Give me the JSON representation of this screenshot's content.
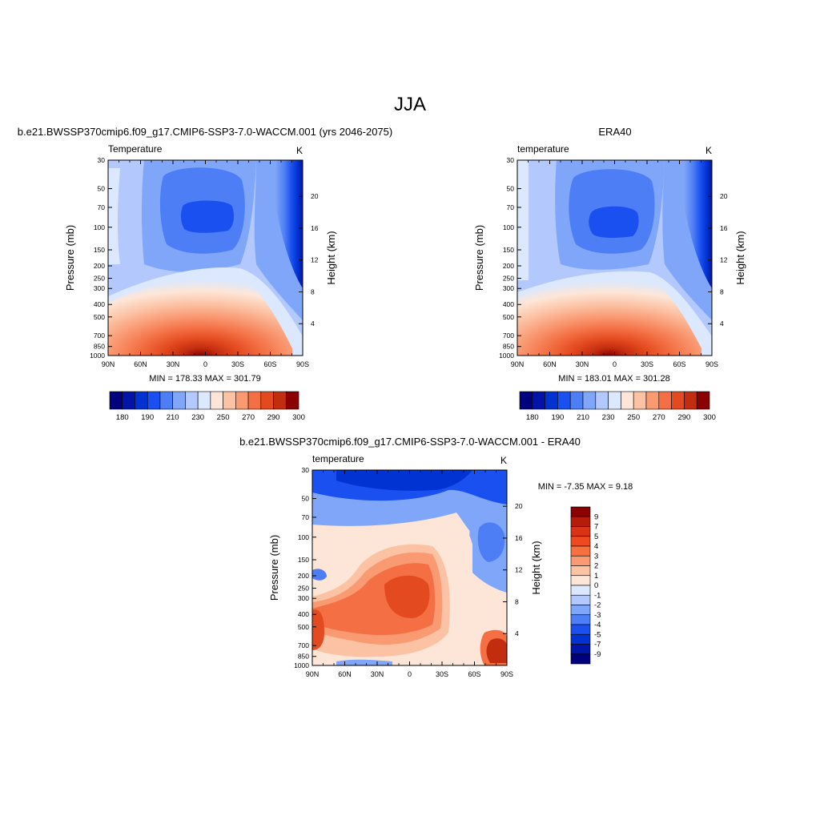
{
  "page": {
    "title": "JJA"
  },
  "chart_data": [
    {
      "type": "heatmap",
      "id": "model",
      "title": "b.e21.BWSSP370cmip6.f09_g17.CMIP6-SSP3-7.0-WACCM.001 (yrs 2046-2075)",
      "left_label": "Temperature",
      "right_label": "K",
      "xlabel": "",
      "ylabel": "Pressure (mb)",
      "ylabel_right": "Height (km)",
      "x_ticks": [
        "90N",
        "60N",
        "30N",
        "0",
        "30S",
        "60S",
        "90S"
      ],
      "x_tick_values": [
        90,
        60,
        30,
        0,
        -30,
        -60,
        -90
      ],
      "xlim": [
        90,
        -90
      ],
      "y_ticks": [
        "30",
        "50",
        "70",
        "100",
        "150",
        "200",
        "250",
        "300",
        "400",
        "500",
        "700",
        "850",
        "1000"
      ],
      "y_tick_values": [
        30,
        50,
        70,
        100,
        150,
        200,
        250,
        300,
        400,
        500,
        700,
        850,
        1000
      ],
      "ylim": [
        1000,
        30
      ],
      "y_scale": "log",
      "height_ticks": [
        "4",
        "8",
        "12",
        "16",
        "20"
      ],
      "height_tick_values": [
        4,
        8,
        12,
        16,
        20
      ],
      "stats": "MIN = 178.33  MAX = 301.79",
      "colorbar": {
        "orientation": "horizontal",
        "labels": [
          "180",
          "190",
          "210",
          "230",
          "250",
          "270",
          "290",
          "300"
        ],
        "colors": [
          "#00007f",
          "#0015a8",
          "#0033d1",
          "#1a4ff0",
          "#4d7ef5",
          "#80a6fa",
          "#b3c8fc",
          "#dbe8fe",
          "#fde6d7",
          "#fcc2a4",
          "#f99a73",
          "#f46f44",
          "#e44a1f",
          "#c22d0f",
          "#8b0000"
        ]
      }
    },
    {
      "type": "heatmap",
      "id": "obs",
      "title": "ERA40",
      "left_label": "temperature",
      "right_label": "K",
      "xlabel": "",
      "ylabel": "Pressure (mb)",
      "ylabel_right": "Height (km)",
      "x_ticks": [
        "90N",
        "60N",
        "30N",
        "0",
        "30S",
        "60S",
        "90S"
      ],
      "x_tick_values": [
        90,
        60,
        30,
        0,
        -30,
        -60,
        -90
      ],
      "xlim": [
        90,
        -90
      ],
      "y_ticks": [
        "30",
        "50",
        "70",
        "100",
        "150",
        "200",
        "250",
        "300",
        "400",
        "500",
        "700",
        "850",
        "1000"
      ],
      "y_tick_values": [
        30,
        50,
        70,
        100,
        150,
        200,
        250,
        300,
        400,
        500,
        700,
        850,
        1000
      ],
      "ylim": [
        1000,
        30
      ],
      "y_scale": "log",
      "height_ticks": [
        "4",
        "8",
        "12",
        "16",
        "20"
      ],
      "height_tick_values": [
        4,
        8,
        12,
        16,
        20
      ],
      "stats": "MIN = 183.01  MAX = 301.28",
      "colorbar": {
        "orientation": "horizontal",
        "labels": [
          "180",
          "190",
          "210",
          "230",
          "250",
          "270",
          "290",
          "300"
        ],
        "colors": [
          "#00007f",
          "#0015a8",
          "#0033d1",
          "#1a4ff0",
          "#4d7ef5",
          "#80a6fa",
          "#b3c8fc",
          "#dbe8fe",
          "#fde6d7",
          "#fcc2a4",
          "#f99a73",
          "#f46f44",
          "#e44a1f",
          "#c22d0f",
          "#8b0000"
        ]
      }
    },
    {
      "type": "heatmap",
      "id": "diff",
      "title": "b.e21.BWSSP370cmip6.f09_g17.CMIP6-SSP3-7.0-WACCM.001 - ERA40",
      "left_label": "temperature",
      "right_label": "K",
      "xlabel": "",
      "ylabel": "Pressure (mb)",
      "ylabel_right": "Height (km)",
      "x_ticks": [
        "90N",
        "60N",
        "30N",
        "0",
        "30S",
        "60S",
        "90S"
      ],
      "x_tick_values": [
        90,
        60,
        30,
        0,
        -30,
        -60,
        -90
      ],
      "xlim": [
        90,
        -90
      ],
      "y_ticks": [
        "30",
        "50",
        "70",
        "100",
        "150",
        "200",
        "250",
        "300",
        "400",
        "500",
        "700",
        "850",
        "1000"
      ],
      "y_tick_values": [
        30,
        50,
        70,
        100,
        150,
        200,
        250,
        300,
        400,
        500,
        700,
        850,
        1000
      ],
      "ylim": [
        1000,
        30
      ],
      "y_scale": "log",
      "height_ticks": [
        "4",
        "8",
        "12",
        "16",
        "20"
      ],
      "height_tick_values": [
        4,
        8,
        12,
        16,
        20
      ],
      "stats": "MIN =  -7.35  MAX =   9.18",
      "colorbar": {
        "orientation": "vertical",
        "labels": [
          "9",
          "7",
          "5",
          "4",
          "3",
          "2",
          "1",
          "0",
          "-1",
          "-2",
          "-3",
          "-4",
          "-5",
          "-7",
          "-9"
        ],
        "colors": [
          "#8b0000",
          "#b71c0a",
          "#d93214",
          "#ef4a1f",
          "#f7703d",
          "#f99a73",
          "#fcc2a4",
          "#fde6d7",
          "#dbe8fe",
          "#b3c8fc",
          "#80a6fa",
          "#4d7ef5",
          "#1a4ff0",
          "#0033d1",
          "#0015a8",
          "#00007f"
        ]
      }
    }
  ]
}
